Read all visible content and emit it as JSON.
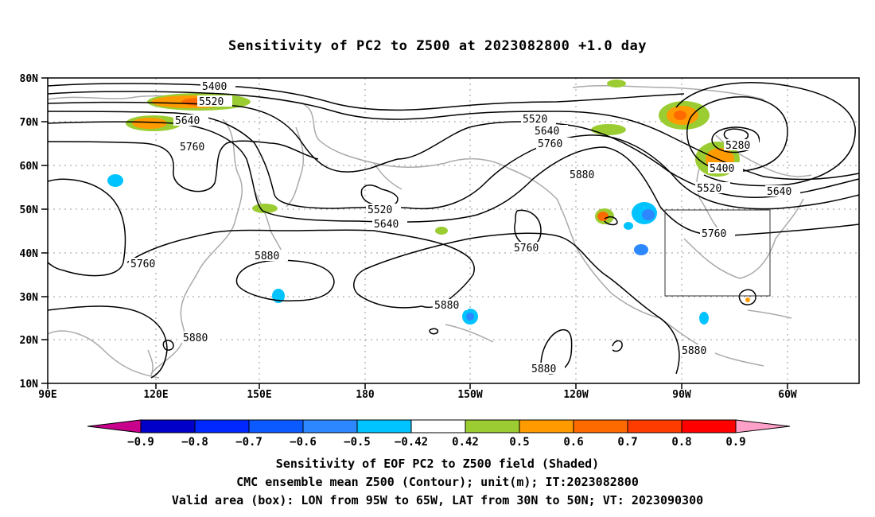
{
  "title": "Sensitivity of PC2 to Z500 at 2023082800 +1.0 day",
  "lat_labels": [
    "80N",
    "70N",
    "60N",
    "50N",
    "40N",
    "30N",
    "20N",
    "10N"
  ],
  "lon_labels": [
    "90E",
    "120E",
    "150E",
    "180",
    "150W",
    "120W",
    "90W",
    "60W"
  ],
  "contour_labels": {
    "c5400a": "5400",
    "c5520a": "5520",
    "c5640a": "5640",
    "c5760a": "5760",
    "c5520b": "5520",
    "c5640b": "5640",
    "c5760b": "5760",
    "c5880a": "5880",
    "c5280": "5280",
    "c5400b": "5400",
    "c5520c": "5520",
    "c5640c": "5640",
    "c5520d": "5520",
    "c5640d": "5640",
    "c5760c": "5760",
    "c5760d": "5760",
    "c5880b": "5880",
    "c5880c": "5880",
    "c5880d": "5880",
    "c5880e": "5880",
    "c5760e": "5760",
    "c5880f": "5880"
  },
  "colorbar": {
    "labels": [
      "−0.9",
      "−0.8",
      "−0.7",
      "−0.6",
      "−0.5",
      "−0.42",
      "0.42",
      "0.5",
      "0.6",
      "0.7",
      "0.8",
      "0.9"
    ],
    "colors": [
      "#0000c8",
      "#0028ff",
      "#0a5aff",
      "#2d87ff",
      "#00c3ff",
      "#ffffff",
      "#9bcd32",
      "#ff9b00",
      "#ff6a00",
      "#ff3c00",
      "#ff0000"
    ],
    "low_color": "#c8008c",
    "high_color": "#ffa0c8"
  },
  "captions": {
    "line1": "Sensitivity of EOF PC2 to Z500 field (Shaded)",
    "line2": "CMC ensemble mean Z500 (Contour); unit(m); IT:2023082800",
    "line3": "Valid area (box): LON from 95W to 65W, LAT from 30N to 50N; VT: 2023090300"
  }
}
